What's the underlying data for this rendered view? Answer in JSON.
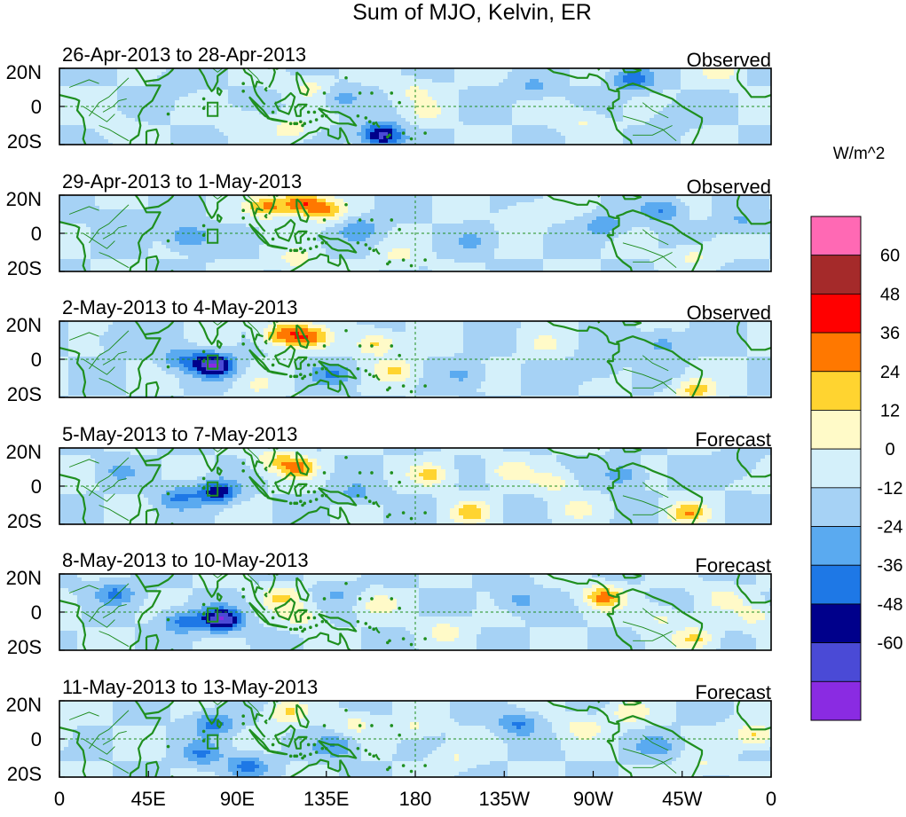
{
  "chart_data": {
    "type": "heatmap",
    "title": "Sum of MJO, Kelvin, ER",
    "units": "W/m^2",
    "x_ticks": [
      "0",
      "45E",
      "90E",
      "135E",
      "180",
      "135W",
      "90W",
      "45W",
      "0"
    ],
    "x_range_deg_east": [
      0,
      360
    ],
    "y_ticks": [
      "20N",
      "0",
      "20S"
    ],
    "y_range_deg": [
      -20,
      20
    ],
    "colorbar": {
      "levels": [
        -60,
        -48,
        -36,
        -24,
        -12,
        0,
        12,
        24,
        36,
        48,
        60
      ],
      "labels": [
        "60",
        "48",
        "36",
        "24",
        "12",
        "0",
        "-12",
        "-24",
        "-36",
        "-48",
        "-60"
      ],
      "colors": [
        "#8a2be2",
        "#4a4ad6",
        "#00008b",
        "#1e78e6",
        "#5aaaf0",
        "#a6d2f5",
        "#d4f0fa",
        "#fffac8",
        "#ffd430",
        "#ff7800",
        "#ff0000",
        "#a52a2a",
        "#ff69b4"
      ]
    },
    "panels": [
      {
        "date_range": "26-Apr-2013 to 28-Apr-2013",
        "status": "Observed",
        "anomalies": [
          {
            "lon": 58,
            "lat": 12,
            "v": -10
          },
          {
            "lon": 95,
            "lat": -8,
            "v": 12
          },
          {
            "lon": 118,
            "lat": -12,
            "v": 20
          },
          {
            "lon": 128,
            "lat": 10,
            "v": 18
          },
          {
            "lon": 142,
            "lat": 5,
            "v": -16
          },
          {
            "lon": 163,
            "lat": -15,
            "v": -55
          },
          {
            "lon": 180,
            "lat": 8,
            "v": 14
          },
          {
            "lon": 187,
            "lat": -3,
            "v": 12
          },
          {
            "lon": 240,
            "lat": 10,
            "v": -14
          },
          {
            "lon": 265,
            "lat": -8,
            "v": 14
          },
          {
            "lon": 290,
            "lat": 14,
            "v": -32
          },
          {
            "lon": 312,
            "lat": -5,
            "v": -12
          },
          {
            "lon": 334,
            "lat": 18,
            "v": 16
          },
          {
            "lon": 30,
            "lat": -12,
            "v": 10
          }
        ]
      },
      {
        "date_range": "29-Apr-2013 to 1-May-2013",
        "status": "Observed",
        "anomalies": [
          {
            "lon": 65,
            "lat": -2,
            "v": -28
          },
          {
            "lon": 105,
            "lat": 14,
            "v": 38
          },
          {
            "lon": 122,
            "lat": 16,
            "v": 44
          },
          {
            "lon": 134,
            "lat": 12,
            "v": 32
          },
          {
            "lon": 120,
            "lat": -14,
            "v": 18
          },
          {
            "lon": 152,
            "lat": 2,
            "v": -22
          },
          {
            "lon": 172,
            "lat": -12,
            "v": 14
          },
          {
            "lon": 210,
            "lat": -4,
            "v": -12
          },
          {
            "lon": 235,
            "lat": 10,
            "v": 14
          },
          {
            "lon": 275,
            "lat": 4,
            "v": -20
          },
          {
            "lon": 305,
            "lat": 12,
            "v": -26
          },
          {
            "lon": 320,
            "lat": -12,
            "v": 16
          },
          {
            "lon": 30,
            "lat": 8,
            "v": -12
          },
          {
            "lon": 345,
            "lat": 6,
            "v": -12
          }
        ]
      },
      {
        "date_range": "2-May-2013 to 4-May-2013",
        "status": "Observed",
        "anomalies": [
          {
            "lon": 78,
            "lat": -3,
            "v": -58
          },
          {
            "lon": 62,
            "lat": 0,
            "v": -24
          },
          {
            "lon": 112,
            "lat": 13,
            "v": 42
          },
          {
            "lon": 126,
            "lat": 12,
            "v": 38
          },
          {
            "lon": 138,
            "lat": -8,
            "v": -22
          },
          {
            "lon": 160,
            "lat": 8,
            "v": 30
          },
          {
            "lon": 170,
            "lat": -6,
            "v": 24
          },
          {
            "lon": 205,
            "lat": -8,
            "v": -14
          },
          {
            "lon": 245,
            "lat": 8,
            "v": 12
          },
          {
            "lon": 272,
            "lat": -4,
            "v": -14
          },
          {
            "lon": 305,
            "lat": 8,
            "v": -20
          },
          {
            "lon": 322,
            "lat": -16,
            "v": 30
          },
          {
            "lon": 30,
            "lat": 10,
            "v": -12
          },
          {
            "lon": 100,
            "lat": -14,
            "v": 12
          }
        ]
      },
      {
        "date_range": "5-May-2013 to 7-May-2013",
        "status": "Forecast",
        "anomalies": [
          {
            "lon": 80,
            "lat": -3,
            "v": -45
          },
          {
            "lon": 60,
            "lat": -6,
            "v": -24
          },
          {
            "lon": 120,
            "lat": 10,
            "v": 36
          },
          {
            "lon": 108,
            "lat": 14,
            "v": 20
          },
          {
            "lon": 150,
            "lat": -4,
            "v": -16
          },
          {
            "lon": 188,
            "lat": 6,
            "v": 26
          },
          {
            "lon": 208,
            "lat": -14,
            "v": 28
          },
          {
            "lon": 228,
            "lat": 8,
            "v": 20
          },
          {
            "lon": 250,
            "lat": 2,
            "v": 18
          },
          {
            "lon": 285,
            "lat": 6,
            "v": -22
          },
          {
            "lon": 318,
            "lat": -14,
            "v": 32
          },
          {
            "lon": 342,
            "lat": 10,
            "v": -12
          },
          {
            "lon": 30,
            "lat": 8,
            "v": -12
          },
          {
            "lon": 262,
            "lat": -12,
            "v": 14
          }
        ]
      },
      {
        "date_range": "8-May-2013 to 10-May-2013",
        "status": "Forecast",
        "anomalies": [
          {
            "lon": 82,
            "lat": -4,
            "v": -58
          },
          {
            "lon": 62,
            "lat": -5,
            "v": -28
          },
          {
            "lon": 28,
            "lat": 10,
            "v": -26
          },
          {
            "lon": 112,
            "lat": 8,
            "v": 24
          },
          {
            "lon": 122,
            "lat": -2,
            "v": 18
          },
          {
            "lon": 162,
            "lat": 4,
            "v": 16
          },
          {
            "lon": 195,
            "lat": -10,
            "v": 18
          },
          {
            "lon": 232,
            "lat": 6,
            "v": -18
          },
          {
            "lon": 275,
            "lat": 8,
            "v": 40
          },
          {
            "lon": 305,
            "lat": -3,
            "v": 16
          },
          {
            "lon": 322,
            "lat": -14,
            "v": 26
          },
          {
            "lon": 336,
            "lat": 8,
            "v": 16
          },
          {
            "lon": 352,
            "lat": -2,
            "v": 16
          },
          {
            "lon": 140,
            "lat": 10,
            "v": -12
          }
        ]
      },
      {
        "date_range": "11-May-2013 to 13-May-2013",
        "status": "Forecast",
        "anomalies": [
          {
            "lon": 78,
            "lat": 8,
            "v": -28
          },
          {
            "lon": 72,
            "lat": -8,
            "v": -24
          },
          {
            "lon": 95,
            "lat": -14,
            "v": -28
          },
          {
            "lon": 115,
            "lat": 14,
            "v": 24
          },
          {
            "lon": 140,
            "lat": -4,
            "v": -24
          },
          {
            "lon": 150,
            "lat": 8,
            "v": 16
          },
          {
            "lon": 180,
            "lat": 6,
            "v": 14
          },
          {
            "lon": 232,
            "lat": 8,
            "v": -26
          },
          {
            "lon": 265,
            "lat": 6,
            "v": 20
          },
          {
            "lon": 288,
            "lat": 14,
            "v": 20
          },
          {
            "lon": 302,
            "lat": -4,
            "v": -18
          },
          {
            "lon": 325,
            "lat": -14,
            "v": 14
          },
          {
            "lon": 352,
            "lat": 2,
            "v": 28
          },
          {
            "lon": 200,
            "lat": -10,
            "v": 12
          }
        ]
      }
    ]
  }
}
